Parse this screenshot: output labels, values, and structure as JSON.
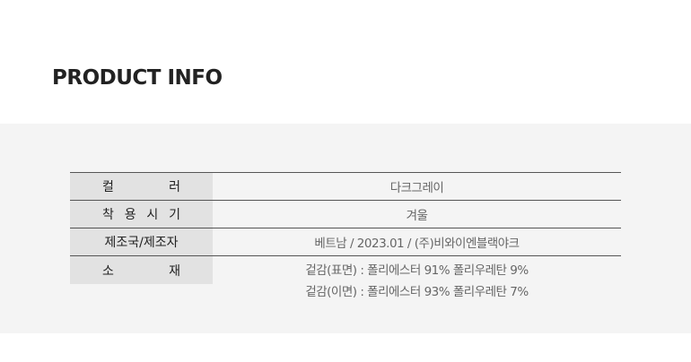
{
  "title": "PRODUCT INFO",
  "rows": [
    {
      "label_chars": [
        "컬",
        "러"
      ],
      "value": "다크그레이"
    },
    {
      "label_chars": [
        "착",
        "용",
        "시",
        "기"
      ],
      "value": "겨울"
    },
    {
      "label": "제조국/제조자",
      "value": "베트남 / 2023.01 / (주)비와이엔블랙야크"
    },
    {
      "label_chars": [
        "소",
        "재"
      ],
      "values": [
        "겉감(표면) : 폴리에스터 91% 폴리우레탄 9%",
        "겉감(이면) : 폴리에스터 93% 폴리우레탄 7%"
      ]
    }
  ]
}
